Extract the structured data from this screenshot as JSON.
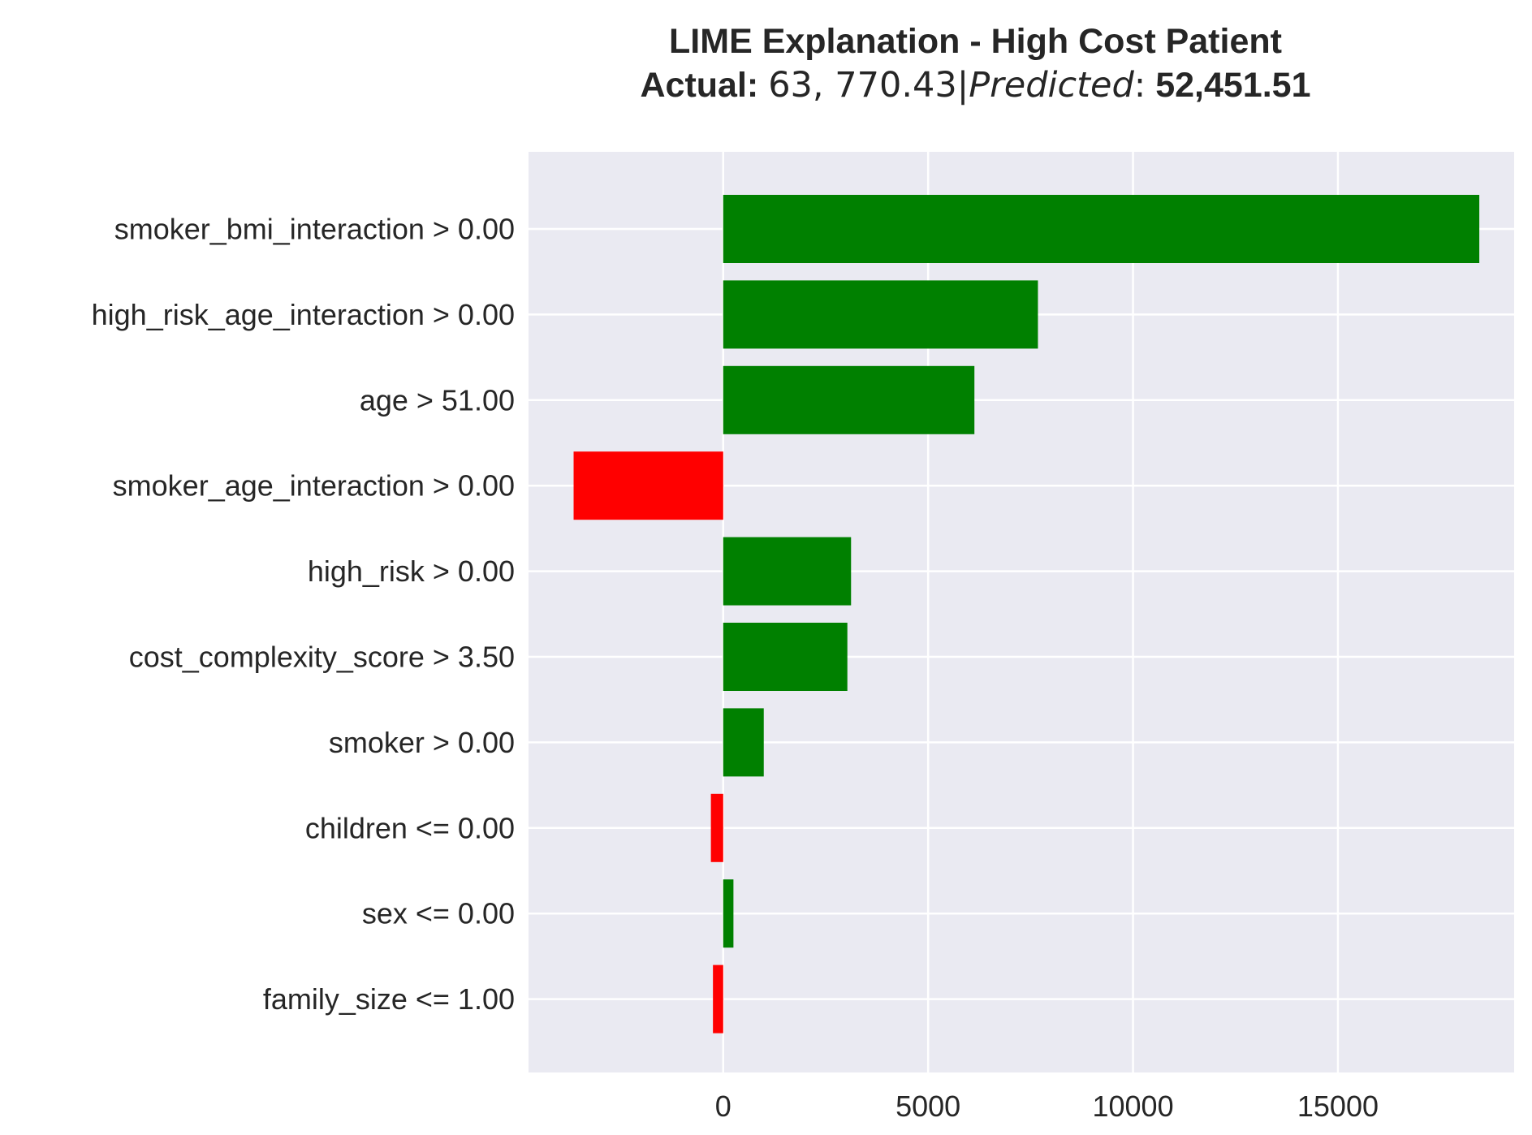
{
  "chart_data": {
    "type": "bar",
    "orientation": "horizontal",
    "title": "LIME Explanation - High Cost Patient",
    "subtitle": {
      "actual_label": "Actual:",
      "actual_value": "63, 770.43|",
      "predicted_label": "Predicted",
      "predicted_sep": ":",
      "predicted_value": "52,451.51"
    },
    "categories": [
      "smoker_bmi_interaction > 0.00",
      "high_risk_age_interaction > 0.00",
      "age > 51.00",
      "smoker_age_interaction > 0.00",
      "high_risk > 0.00",
      "cost_complexity_score > 3.50",
      "smoker > 0.00",
      "children <= 0.00",
      "sex <= 0.00",
      "family_size <= 1.00"
    ],
    "values": [
      18450,
      7680,
      6130,
      -3650,
      3120,
      3030,
      990,
      -300,
      250,
      -250
    ],
    "xlim": [
      -4750,
      19300
    ],
    "xticks": [
      0,
      5000,
      10000,
      15000
    ],
    "xtick_labels": [
      "0",
      "5000",
      "10000",
      "15000"
    ],
    "xlabel": "",
    "ylabel": "",
    "grid": true,
    "colors": {
      "positive": "#008000",
      "negative": "#ff0000",
      "background": "#eaeaf2",
      "grid": "#ffffff",
      "text": "#262626"
    }
  }
}
